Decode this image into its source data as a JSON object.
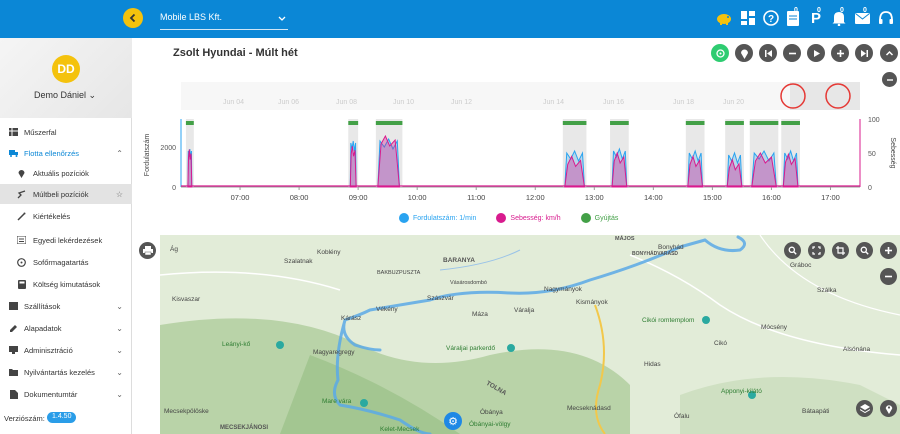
{
  "topbar": {
    "company": "Mobile LBS Kft.",
    "icons": [
      {
        "name": "piggy-bank-icon",
        "glyph": "🐷",
        "badge": ""
      },
      {
        "name": "dashboard-icon",
        "glyph": "▦",
        "badge": ""
      },
      {
        "name": "help-icon",
        "glyph": "?",
        "badge": ""
      },
      {
        "name": "document-icon",
        "glyph": "▤",
        "badge": "0"
      },
      {
        "name": "parking-icon",
        "glyph": "P",
        "badge": "0"
      },
      {
        "name": "notification-icon",
        "glyph": "🔔",
        "badge": "0"
      },
      {
        "name": "message-icon",
        "glyph": "✉",
        "badge": "0"
      },
      {
        "name": "headset-icon",
        "glyph": "🎧",
        "badge": ""
      }
    ]
  },
  "user": {
    "initials": "DD",
    "name": "Demo Dániel"
  },
  "menu": {
    "muszerfal": "Műszerfal",
    "flotta": "Flotta ellenőrzés",
    "aktualis": "Aktuális pozíciók",
    "multbeli": "Múltbeli pozíciók",
    "kiertekeles": "Kiértékelés",
    "egyedi": "Egyedi lekérdezések",
    "sofor": "Sofőrmagatartás",
    "koltseg": "Költség kimutatások",
    "szallitasok": "Szállítások",
    "alapadatok": "Alapadatok",
    "adminisztracio": "Adminisztráció",
    "nyilvantartas": "Nyilvántartás kezelés",
    "dokumentumtar": "Dokumentumtár"
  },
  "version": {
    "label": "Verziószám:",
    "value": "1.4.50"
  },
  "chart_panel": {
    "title": "Zsolt Hyundai - Múlt hét"
  },
  "chart_data": {
    "type": "area",
    "xlabel": "",
    "ylabel_left": "Fordulatszám",
    "ylabel_right": "Sebesség",
    "ylim_left": [
      0,
      3000
    ],
    "ylim_right": [
      0,
      100
    ],
    "yticks_left": [
      "0",
      "2000"
    ],
    "yticks_right": [
      "0",
      "50",
      "100"
    ],
    "x_ticks": [
      "07:00",
      "08:00",
      "09:00",
      "10:00",
      "11:00",
      "12:00",
      "13:00",
      "14:00",
      "15:00",
      "16:00",
      "17:00"
    ],
    "navigator_labels": [
      "Jun 04",
      "Jun 06",
      "Jun 08",
      "Jun 10",
      "Jun 12",
      "Jun 14",
      "Jun 16",
      "Jun 18",
      "Jun 20"
    ],
    "series": [
      {
        "name": "Fordulatszám: 1/min",
        "color": "#29a3f0",
        "segments": [
          [
            "06:07",
            "06:11",
            1800
          ],
          [
            "08:52",
            "08:58",
            2200
          ],
          [
            "09:20",
            "09:42",
            2300
          ],
          [
            "12:30",
            "12:50",
            1700
          ],
          [
            "13:18",
            "13:33",
            1800
          ],
          [
            "14:35",
            "14:50",
            1700
          ],
          [
            "15:15",
            "15:30",
            1600
          ],
          [
            "15:40",
            "16:05",
            1700
          ],
          [
            "16:12",
            "16:27",
            1700
          ]
        ]
      },
      {
        "name": "Sebesség: km/h",
        "color": "#d81b8e",
        "segments": [
          [
            "06:07",
            "06:11",
            55
          ],
          [
            "08:52",
            "08:58",
            60
          ],
          [
            "09:20",
            "09:42",
            75
          ],
          [
            "12:30",
            "12:50",
            45
          ],
          [
            "13:18",
            "13:33",
            50
          ],
          [
            "14:35",
            "14:50",
            45
          ],
          [
            "15:15",
            "15:30",
            40
          ],
          [
            "15:40",
            "16:05",
            50
          ],
          [
            "16:12",
            "16:27",
            48
          ]
        ]
      },
      {
        "name": "Gyújtás",
        "color": "#43a047",
        "segments": [
          [
            "06:05",
            "06:13"
          ],
          [
            "08:50",
            "09:00"
          ],
          [
            "09:18",
            "09:45"
          ],
          [
            "12:28",
            "12:52"
          ],
          [
            "13:16",
            "13:35"
          ],
          [
            "14:33",
            "14:52"
          ],
          [
            "15:13",
            "15:32"
          ],
          [
            "15:38",
            "16:07"
          ],
          [
            "16:10",
            "16:29"
          ]
        ]
      }
    ],
    "legend": [
      {
        "label": "Fordulatszám: 1/min",
        "color": "#29a3f0"
      },
      {
        "label": "Sebesség: km/h",
        "color": "#d81b8e"
      },
      {
        "label": "Gyújtás",
        "color": "#43a047"
      }
    ]
  },
  "map": {
    "labels": [
      "Ág",
      "Koblény",
      "Szalatnak",
      "BARANYA",
      "BAKBUZPUSZTA",
      "Vásárosdombó",
      "Kisvaszar",
      "Vékény",
      "Szászvár",
      "Nagymányok",
      "Kismányok",
      "Bonyhád",
      "Kárász",
      "Máza",
      "Váralja",
      "Leányi-kő",
      "Magyaregregy",
      "Váraljai parkerdő",
      "Cikói romtemplom",
      "Hidas",
      "Mócsény",
      "Cikó",
      "Alsónána",
      "Gráboc",
      "Szálka",
      "Mecsekpölöske",
      "Mare vára",
      "Óbánya",
      "Mecseknádasd",
      "Ófalu",
      "Apponyi-kilátó",
      "Bátaapáti",
      "Óbányai-völgy",
      "Kelet-Mecsek",
      "MECSEKJÁNOSI",
      "TOLNA",
      "MÁJOS",
      "BONYHÁDVARASD"
    ]
  }
}
